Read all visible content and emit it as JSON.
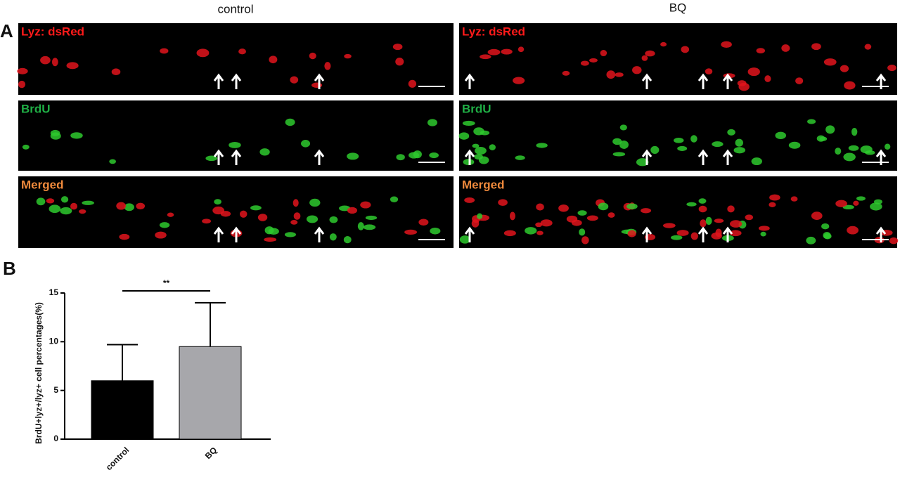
{
  "panel_a": {
    "label": "A",
    "columns": [
      "control",
      "BQ"
    ],
    "rows": [
      "Lyz: dsRed",
      "BrdU",
      "Merged"
    ]
  },
  "panel_b": {
    "label": "B"
  },
  "chart_data": {
    "type": "bar",
    "categories": [
      "control",
      "BQ"
    ],
    "values": [
      6,
      9.5
    ],
    "errors": [
      3.7,
      4.5
    ],
    "colors": [
      "#000000",
      "#a7a7ab"
    ],
    "ylabel": "BrdU+lyz+/lyz+ cell percentages(%)",
    "ylim": [
      0,
      15
    ],
    "yticks": [
      0,
      5,
      10,
      15
    ],
    "annotation": "**"
  }
}
